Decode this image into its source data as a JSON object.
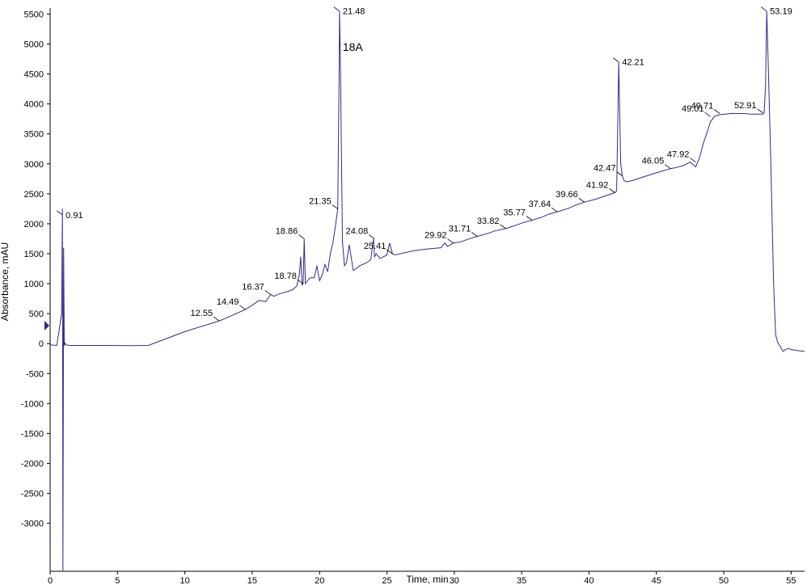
{
  "chart_data": {
    "type": "line",
    "title": "",
    "xlabel": "Time, min",
    "ylabel": "Absorbance, mAU",
    "xlim": [
      0,
      56
    ],
    "ylim": [
      -3800,
      5600
    ],
    "x_ticks": [
      0,
      5,
      10,
      15,
      20,
      25,
      30,
      35,
      40,
      45,
      50,
      55
    ],
    "y_ticks": [
      -3000,
      -2500,
      -2000,
      -1500,
      -1000,
      -500,
      0,
      500,
      1000,
      1500,
      2000,
      2500,
      3000,
      3500,
      4000,
      4500,
      5000,
      5500
    ],
    "grid": false,
    "legend": "none",
    "line_color": "#2f2f7f",
    "series": [
      {
        "x": [
          0.0,
          0.5,
          0.85,
          0.91,
          0.95,
          1.0,
          1.05,
          1.1,
          1.2,
          1.4,
          2.0,
          4.0,
          6.0,
          7.3,
          8.0,
          10.0,
          12.0,
          12.55,
          13.0,
          14.0,
          14.49,
          15.0,
          15.5,
          16.0,
          16.37,
          16.6,
          17.0,
          17.5,
          18.0,
          18.3,
          18.5,
          18.6,
          18.7,
          18.78,
          18.86,
          18.95,
          19.1,
          19.3,
          19.6,
          19.8,
          20.0,
          20.2,
          20.4,
          20.6,
          20.8,
          21.0,
          21.2,
          21.35,
          21.45,
          21.48,
          21.55,
          21.7,
          21.85,
          22.0,
          22.2,
          22.5,
          23.0,
          23.5,
          23.8,
          24.0,
          24.08,
          24.2,
          24.5,
          25.0,
          25.2,
          25.41,
          25.6,
          26.0,
          27.0,
          28.0,
          29.0,
          29.3,
          29.5,
          29.92,
          30.5,
          31.0,
          31.71,
          32.5,
          33.0,
          33.82,
          34.5,
          35.0,
          35.77,
          36.5,
          37.0,
          37.64,
          38.5,
          39.0,
          39.66,
          40.5,
          41.0,
          41.92,
          42.05,
          42.21,
          42.35,
          42.47,
          42.6,
          42.8,
          43.2,
          44.0,
          45.0,
          46.05,
          46.5,
          47.0,
          47.5,
          47.92,
          48.2,
          48.5,
          48.8,
          49.01,
          49.3,
          49.5,
          49.71,
          50.5,
          51.0,
          51.5,
          52.0,
          52.5,
          52.91,
          53.0,
          53.1,
          53.19,
          53.3,
          53.5,
          53.7,
          53.85,
          54.0,
          54.2,
          54.4,
          54.6,
          54.8,
          55.0,
          55.3,
          55.6,
          56.0
        ],
        "y": [
          -20,
          -30,
          500,
          2250,
          -3800,
          1600,
          -40,
          10,
          -20,
          -30,
          -30,
          -30,
          -35,
          -30,
          30,
          200,
          340,
          380,
          420,
          520,
          570,
          640,
          720,
          700,
          820,
          790,
          830,
          860,
          900,
          960,
          1150,
          1450,
          980,
          1000,
          1750,
          1000,
          1050,
          1100,
          1100,
          1300,
          1050,
          1150,
          1320,
          1200,
          1500,
          1700,
          2000,
          2250,
          4500,
          5550,
          4700,
          1700,
          1300,
          1350,
          1650,
          1220,
          1300,
          1350,
          1400,
          1750,
          1450,
          1500,
          1420,
          1480,
          1680,
          1500,
          1480,
          1500,
          1550,
          1580,
          1600,
          1680,
          1620,
          1680,
          1700,
          1740,
          1790,
          1840,
          1880,
          1920,
          1970,
          2010,
          2060,
          2110,
          2160,
          2200,
          2260,
          2310,
          2360,
          2410,
          2450,
          2520,
          2550,
          4700,
          3000,
          2800,
          2720,
          2700,
          2720,
          2780,
          2850,
          2920,
          2940,
          2970,
          3030,
          2950,
          3100,
          3350,
          3550,
          3700,
          3790,
          3810,
          3820,
          3840,
          3840,
          3840,
          3830,
          3830,
          3830,
          3850,
          4300,
          5550,
          4700,
          3000,
          1000,
          150,
          20,
          -50,
          -130,
          -100,
          -80,
          -100,
          -110,
          -120,
          -130
        ]
      }
    ],
    "peak_labels": [
      {
        "text": "0.91",
        "x": 0.91,
        "y": 2150
      },
      {
        "text": "12.55",
        "x": 12.55,
        "y": 380
      },
      {
        "text": "14.49",
        "x": 14.49,
        "y": 570
      },
      {
        "text": "16.37",
        "x": 16.37,
        "y": 820
      },
      {
        "text": "18.78",
        "x": 18.78,
        "y": 1000
      },
      {
        "text": "18.86",
        "x": 18.86,
        "y": 1750
      },
      {
        "text": "21.35",
        "x": 21.35,
        "y": 2250
      },
      {
        "text": "21.48",
        "x": 21.48,
        "y": 5550
      },
      {
        "text": "24.08",
        "x": 24.08,
        "y": 1750
      },
      {
        "text": "25.41",
        "x": 25.41,
        "y": 1500
      },
      {
        "text": "29.92",
        "x": 29.92,
        "y": 1680
      },
      {
        "text": "31.71",
        "x": 31.71,
        "y": 1790
      },
      {
        "text": "33.82",
        "x": 33.82,
        "y": 1920
      },
      {
        "text": "35.77",
        "x": 35.77,
        "y": 2060
      },
      {
        "text": "37.64",
        "x": 37.64,
        "y": 2200
      },
      {
        "text": "39.66",
        "x": 39.66,
        "y": 2360
      },
      {
        "text": "41.92",
        "x": 41.92,
        "y": 2520
      },
      {
        "text": "42.21",
        "x": 42.21,
        "y": 4700
      },
      {
        "text": "42.47",
        "x": 42.47,
        "y": 2800
      },
      {
        "text": "46.05",
        "x": 46.05,
        "y": 2920
      },
      {
        "text": "47.92",
        "x": 47.92,
        "y": 3030
      },
      {
        "text": "49.01",
        "x": 49.01,
        "y": 3790
      },
      {
        "text": "49.71",
        "x": 49.71,
        "y": 3840
      },
      {
        "text": "52.91",
        "x": 52.91,
        "y": 3850
      },
      {
        "text": "53.19",
        "x": 53.19,
        "y": 5550
      }
    ],
    "annotations": [
      {
        "text": "18A",
        "x": 21.6,
        "y": 4950
      }
    ]
  }
}
